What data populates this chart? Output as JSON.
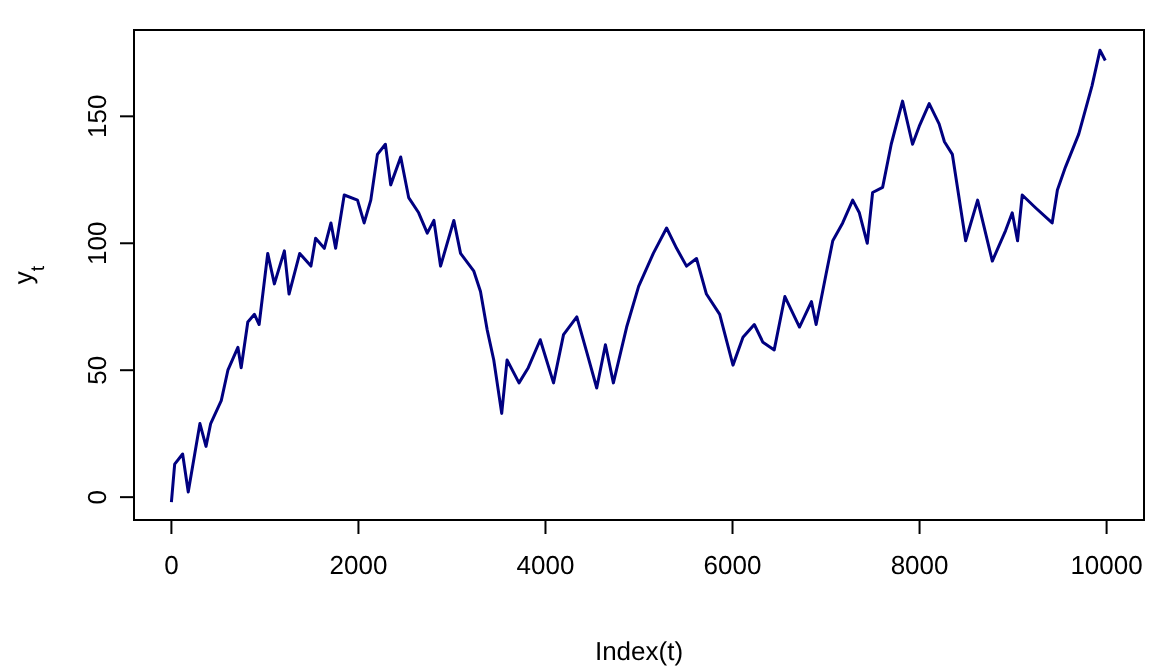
{
  "chart_data": {
    "type": "line",
    "xlabel": "Index(t)",
    "ylabel": "y$_{t}$",
    "xlim": [
      -400,
      10400
    ],
    "ylim": [
      -9,
      184
    ],
    "xticks": [
      0,
      2000,
      4000,
      6000,
      8000,
      10000
    ],
    "yticks": [
      0,
      50,
      100,
      150
    ],
    "grid": false,
    "marker": "none",
    "line_style": "solid",
    "series": [
      {
        "color": "#000080",
        "x": [
          0,
          35,
          120,
          180,
          305,
          370,
          420,
          533,
          604,
          711,
          746,
          817,
          888,
          938,
          1030,
          1101,
          1208,
          1258,
          1372,
          1492,
          1542,
          1635,
          1706,
          1756,
          1848,
          1990,
          2061,
          2132,
          2203,
          2288,
          2345,
          2452,
          2537,
          2644,
          2736,
          2807,
          2878,
          3020,
          3092,
          3234,
          3305,
          3376,
          3447,
          3532,
          3589,
          3717,
          3816,
          3944,
          4086,
          4193,
          4335,
          4442,
          4548,
          4641,
          4726,
          4868,
          4996,
          5153,
          5295,
          5402,
          5508,
          5615,
          5721,
          5863,
          6005,
          6112,
          6233,
          6325,
          6446,
          6560,
          6716,
          6844,
          6894,
          7001,
          7072,
          7178,
          7285,
          7356,
          7441,
          7498,
          7605,
          7697,
          7818,
          7925,
          7996,
          8103,
          8209,
          8266,
          8351,
          8493,
          8621,
          8778,
          8920,
          8991,
          9048,
          9098,
          9240,
          9418,
          9474,
          9560,
          9702,
          9844,
          9929,
          9986
        ],
        "values": [
          -2,
          13,
          17,
          2,
          29,
          20,
          29,
          38,
          50,
          59,
          51,
          69,
          72,
          68,
          96,
          84,
          97,
          80,
          96,
          91,
          102,
          98,
          108,
          98,
          119,
          117,
          108,
          117,
          135,
          139,
          123,
          134,
          118,
          112,
          104,
          109,
          91,
          109,
          96,
          89,
          81,
          66,
          54,
          33,
          54,
          45,
          51,
          62,
          45,
          64,
          71,
          57,
          43,
          60,
          45,
          67,
          83,
          96,
          106,
          98,
          91,
          94,
          80,
          72,
          52,
          63,
          68,
          61,
          58,
          79,
          67,
          77,
          68,
          88,
          101,
          108,
          117,
          112,
          100,
          120,
          122,
          139,
          156,
          139,
          146,
          155,
          147,
          140,
          135,
          101,
          117,
          93,
          105,
          112,
          101,
          119,
          114,
          108,
          121,
          130,
          143,
          162,
          176,
          172
        ]
      }
    ]
  }
}
